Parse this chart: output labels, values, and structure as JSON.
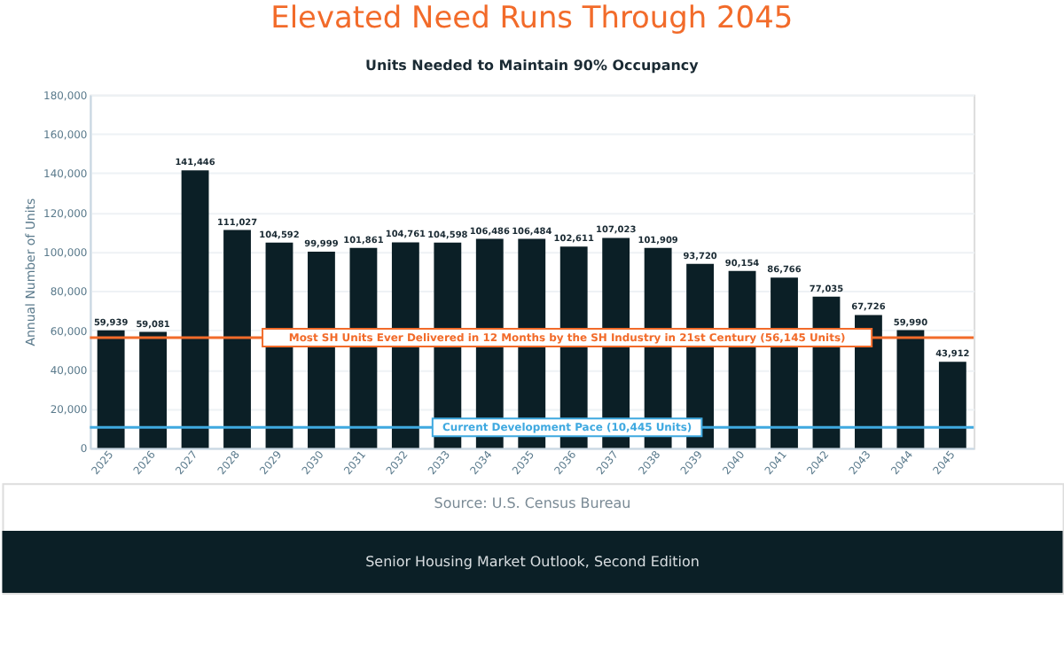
{
  "chart_data": {
    "type": "bar",
    "title": "Elevated Need Runs Through 2045",
    "subtitle": "Units Needed to Maintain 90% Occupancy",
    "ylabel": "Annual Number of Units",
    "categories": [
      "2025",
      "2026",
      "2027",
      "2028",
      "2029",
      "2030",
      "2031",
      "2032",
      "2033",
      "2034",
      "2035",
      "2036",
      "2037",
      "2038",
      "2039",
      "2040",
      "2041",
      "2042",
      "2043",
      "2044",
      "2045"
    ],
    "values": [
      59939,
      59081,
      141446,
      111027,
      104592,
      99999,
      101861,
      104761,
      104598,
      106486,
      106484,
      102611,
      107023,
      101909,
      93720,
      90154,
      86766,
      77035,
      67726,
      59990,
      43912
    ],
    "color": "#0b1f26",
    "value_labels": [
      "59,939",
      "59,081",
      "141,446",
      "111,027",
      "104,592",
      "99,999",
      "101,861",
      "104,761",
      "104,598",
      "106,486",
      "106,484",
      "102,611",
      "107,023",
      "101,909",
      "93,720",
      "90,154",
      "86,766",
      "77,035",
      "67,726",
      "59,990",
      "43,912"
    ],
    "ylim": [
      0,
      180000
    ],
    "yticks": [
      {
        "value": 0,
        "label": "0"
      },
      {
        "value": 20000,
        "label": "20,000"
      },
      {
        "value": 40000,
        "label": "40,000"
      },
      {
        "value": 60000,
        "label": "60,000"
      },
      {
        "value": 80000,
        "label": "80,000"
      },
      {
        "value": 100000,
        "label": "100,000"
      },
      {
        "value": 120000,
        "label": "120,000"
      },
      {
        "value": 140000,
        "label": "140,000"
      },
      {
        "value": 160000,
        "label": "160,000"
      },
      {
        "value": 180000,
        "label": "180,000"
      }
    ],
    "grid": "y",
    "ref_lines": [
      {
        "axis": "y",
        "value": 56145,
        "label": "Most SH Units Ever Delivered in 12 Months by the SH Industry in 21st Century (56,145 Units)",
        "color": "#f26b2a"
      },
      {
        "axis": "y",
        "value": 10445,
        "label": "Current Development Pace (10,445 Units)",
        "color": "#3fa9e0"
      }
    ],
    "annotations": [
      "Source: U.S. Census Bureau",
      "Senior Housing Market Outlook, Second Edition"
    ]
  }
}
